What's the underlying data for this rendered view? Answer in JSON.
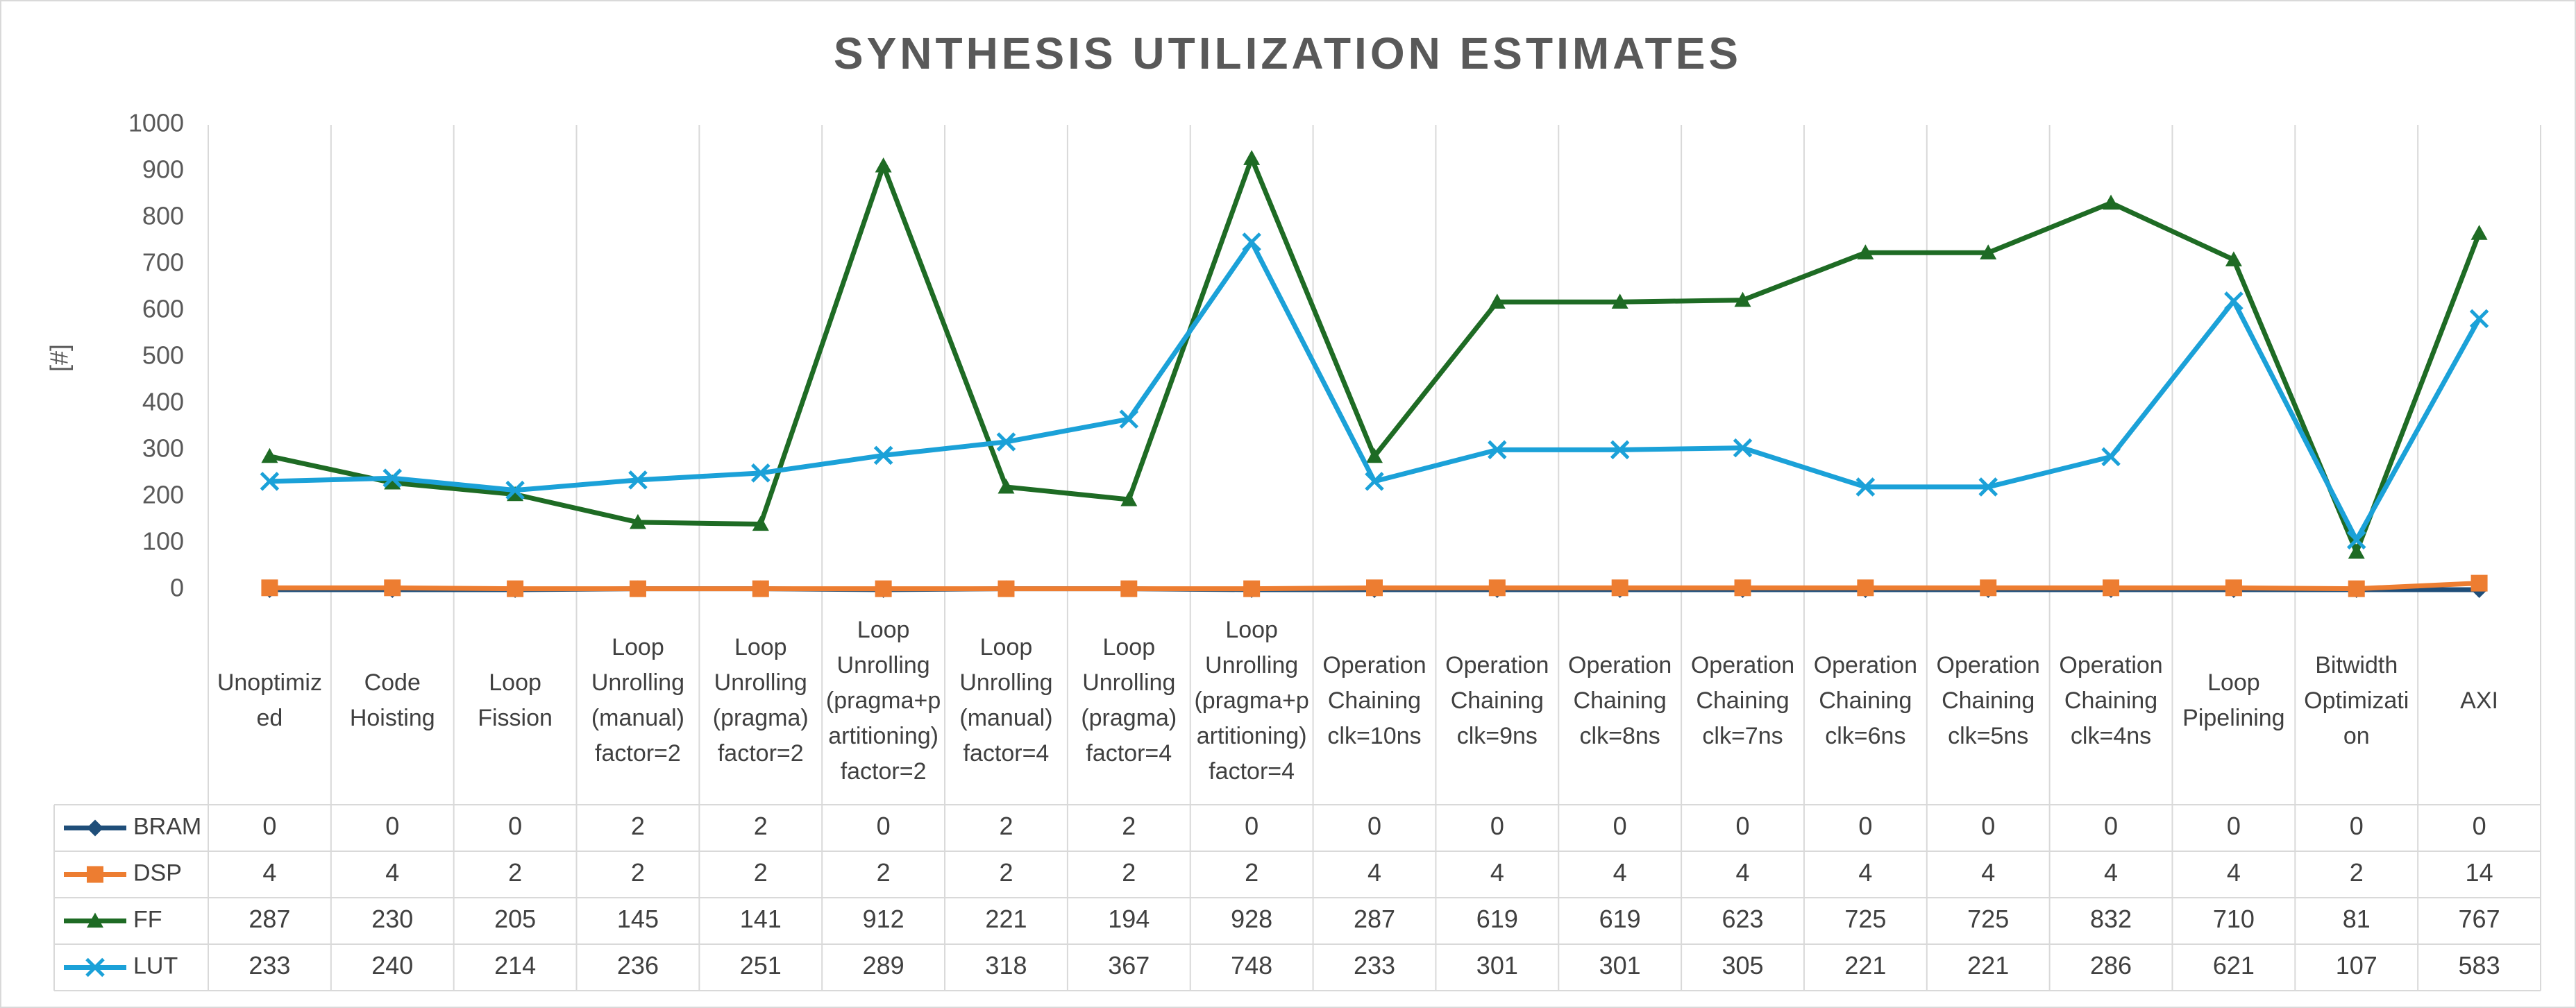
{
  "chart_data": {
    "type": "line",
    "title": "SYNTHESIS UTILIZATION ESTIMATES",
    "y_label": "[#]",
    "categories": [
      "Unoptimized",
      "Code Hoisting",
      "Loop Fission",
      "Loop Unrolling (manual) factor=2",
      "Loop Unrolling (pragma) factor=2",
      "Loop Unrolling (pragma+partitioning) factor=2",
      "Loop Unrolling (manual) factor=4",
      "Loop Unrolling (pragma) factor=4",
      "Loop Unrolling (pragma+partitioning) factor=4",
      "Operation Chaining clk=10ns",
      "Operation Chaining clk=9ns",
      "Operation Chaining clk=8ns",
      "Operation Chaining clk=7ns",
      "Operation Chaining clk=6ns",
      "Operation Chaining clk=5ns",
      "Operation Chaining clk=4ns",
      "Loop Pipelining",
      "Bitwidth Optimization",
      "AXI"
    ],
    "series": [
      {
        "name": "BRAM",
        "color": "#1f4e79",
        "marker": "diamond",
        "values": [
          0,
          0,
          0,
          2,
          2,
          0,
          2,
          2,
          0,
          0,
          0,
          0,
          0,
          0,
          0,
          0,
          0,
          0,
          0
        ]
      },
      {
        "name": "DSP",
        "color": "#ed7d31",
        "marker": "square",
        "values": [
          4,
          4,
          2,
          2,
          2,
          2,
          2,
          2,
          2,
          4,
          4,
          4,
          4,
          4,
          4,
          4,
          4,
          2,
          14
        ]
      },
      {
        "name": "FF",
        "color": "#1e6b24",
        "marker": "triangle",
        "values": [
          287,
          230,
          205,
          145,
          141,
          912,
          221,
          194,
          928,
          287,
          619,
          619,
          623,
          725,
          725,
          832,
          710,
          81,
          767
        ]
      },
      {
        "name": "LUT",
        "color": "#1ba1d8",
        "marker": "x",
        "values": [
          233,
          240,
          214,
          236,
          251,
          289,
          318,
          367,
          748,
          233,
          301,
          301,
          305,
          221,
          221,
          286,
          621,
          107,
          583
        ]
      }
    ],
    "ylim": [
      0,
      1000
    ],
    "yticks": [
      0,
      100,
      200,
      300,
      400,
      500,
      600,
      700,
      800,
      900,
      1000
    ],
    "vertical_grid": true,
    "data_table": true
  }
}
